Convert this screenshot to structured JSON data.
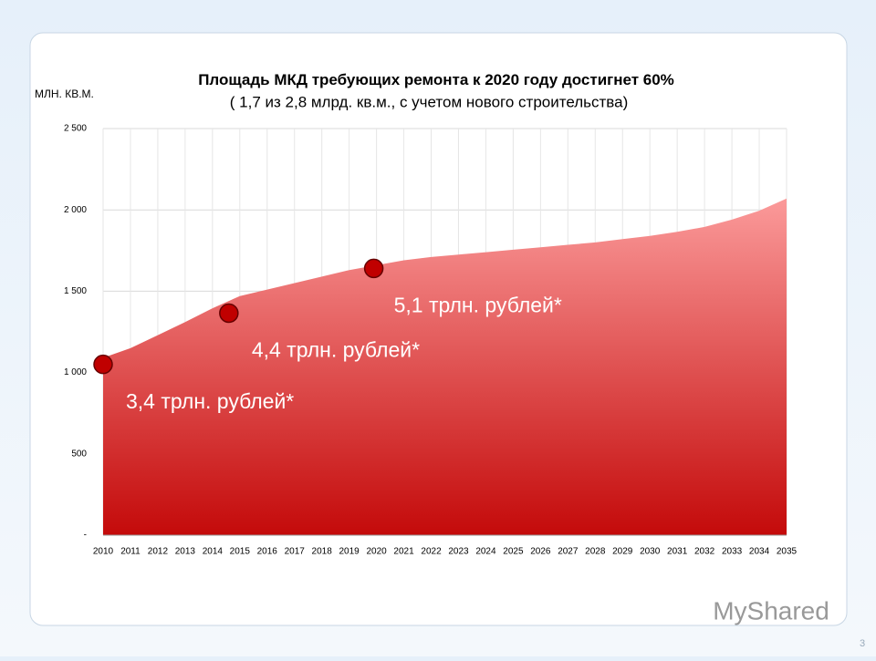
{
  "chart_data": {
    "type": "area",
    "title": "Площадь МКД требующих ремонта к 2020 году достигнет 60%",
    "title_rest": "( 1,7 из 2,8 млрд. кв.м., с учетом нового строительства)",
    "y_label": "МЛН. КВ.М.",
    "x": [
      "2010",
      "2011",
      "2012",
      "2013",
      "2014",
      "2015",
      "2016",
      "2017",
      "2018",
      "2019",
      "2020",
      "2021",
      "2022",
      "2023",
      "2024",
      "2025",
      "2026",
      "2027",
      "2028",
      "2029",
      "2030",
      "2031",
      "2032",
      "2033",
      "2034",
      "2035"
    ],
    "values": [
      1090,
      1150,
      1230,
      1310,
      1395,
      1470,
      1510,
      1550,
      1590,
      1630,
      1660,
      1690,
      1710,
      1725,
      1740,
      1755,
      1770,
      1785,
      1800,
      1820,
      1840,
      1865,
      1895,
      1940,
      1995,
      2070
    ],
    "color": "#e02020",
    "ylim": [
      0,
      2500
    ],
    "yticks": [
      {
        "value": 0,
        "label": "-"
      },
      500,
      {
        "value": 1000,
        "label": "1 000"
      },
      {
        "value": 1500,
        "label": "1 500"
      },
      {
        "value": 2000,
        "label": "2 000"
      },
      {
        "value": 2500,
        "label": "2 500"
      }
    ],
    "annotations": [
      {
        "x": 2010,
        "y": 1050,
        "text": "3,4 трлн. рублей*"
      },
      {
        "x": 2014.6,
        "y": 1365,
        "text": "4,4 трлн. рублей*"
      },
      {
        "x": 2019.9,
        "y": 1640,
        "text": "5,1 трлн. рублей*"
      }
    ]
  },
  "page_number": "3",
  "watermark": "MyShared"
}
